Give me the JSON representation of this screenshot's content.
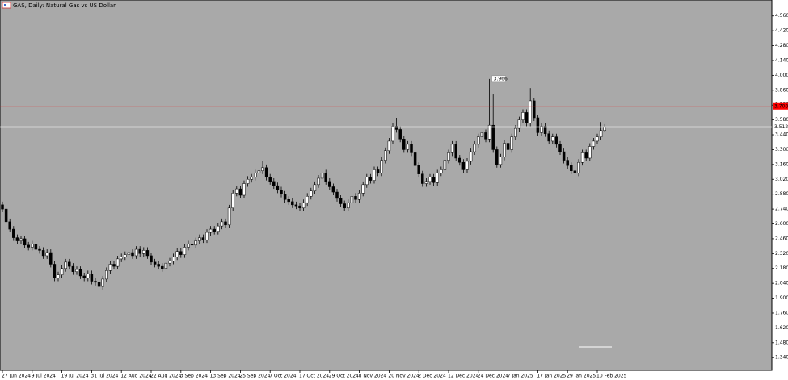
{
  "chart_data": {
    "type": "candlestick",
    "title": "GAS, Daily:  Natural Gas vs US Dollar",
    "background": "#a9a9a9",
    "up_color": "#ffffff",
    "down_color": "#000000",
    "ylim": [
      1.22,
      4.71
    ],
    "yticks": [
      {
        "value": 4.56,
        "label": "4.560"
      },
      {
        "value": 4.42,
        "label": "4.420"
      },
      {
        "value": 4.28,
        "label": "4.280"
      },
      {
        "value": 4.14,
        "label": "4.140"
      },
      {
        "value": 4.0,
        "label": "4.000"
      },
      {
        "value": 3.86,
        "label": "3.860"
      },
      {
        "value": 3.72,
        "label": "3.720"
      },
      {
        "value": 3.58,
        "label": "3.580"
      },
      {
        "value": 3.44,
        "label": "3.440"
      },
      {
        "value": 3.3,
        "label": "3.300"
      },
      {
        "value": 3.16,
        "label": "3.160"
      },
      {
        "value": 3.02,
        "label": "3.020"
      },
      {
        "value": 2.88,
        "label": "2.880"
      },
      {
        "value": 2.74,
        "label": "2.740"
      },
      {
        "value": 2.6,
        "label": "2.600"
      },
      {
        "value": 2.46,
        "label": "2.460"
      },
      {
        "value": 2.32,
        "label": "2.320"
      },
      {
        "value": 2.18,
        "label": "2.180"
      },
      {
        "value": 2.04,
        "label": "2.040"
      },
      {
        "value": 1.9,
        "label": "1.900"
      },
      {
        "value": 1.76,
        "label": "1.760"
      },
      {
        "value": 1.62,
        "label": "1.620"
      },
      {
        "value": 1.48,
        "label": "1.480"
      },
      {
        "value": 1.34,
        "label": "1.340"
      }
    ],
    "levels": [
      {
        "value": 3.708,
        "color": "#ff0000"
      },
      {
        "value": 3.512,
        "color": "#ffffff"
      }
    ],
    "annotation_candle": 131,
    "categories": [
      "27 Jun 2024",
      null,
      null,
      null,
      null,
      null,
      null,
      null,
      "9 Jul 2024",
      null,
      null,
      null,
      null,
      null,
      null,
      null,
      "19 Jul 2024",
      null,
      null,
      null,
      null,
      null,
      null,
      null,
      "31 Jul 2024",
      null,
      null,
      null,
      null,
      null,
      null,
      null,
      "12 Aug 2024",
      null,
      null,
      null,
      null,
      null,
      null,
      null,
      "22 Aug 2024",
      null,
      null,
      null,
      null,
      null,
      null,
      null,
      "3 Sep 2024",
      null,
      null,
      null,
      null,
      null,
      null,
      null,
      "13 Sep 2024",
      null,
      null,
      null,
      null,
      null,
      null,
      null,
      "25 Sep 2024",
      null,
      null,
      null,
      null,
      null,
      null,
      null,
      "7 Oct 2024",
      null,
      null,
      null,
      null,
      null,
      null,
      null,
      "17 Oct 2024",
      null,
      null,
      null,
      null,
      null,
      null,
      null,
      "29 Oct 2024",
      null,
      null,
      null,
      null,
      null,
      null,
      null,
      "8 Nov 2024",
      null,
      null,
      null,
      null,
      null,
      null,
      null,
      "20 Nov 2024",
      null,
      null,
      null,
      null,
      null,
      null,
      null,
      "2 Dec 2024",
      null,
      null,
      null,
      null,
      null,
      null,
      null,
      "12 Dec 2024",
      null,
      null,
      null,
      null,
      null,
      null,
      null,
      "24 Dec 2024",
      null,
      null,
      null,
      null,
      null,
      null,
      null,
      "7 Jan 2025",
      null,
      null,
      null,
      null,
      null,
      null,
      null,
      "17 Jan 2025",
      null,
      null,
      null,
      null,
      null,
      null,
      null,
      "29 Jan 2025",
      null,
      null,
      null,
      null,
      null,
      null,
      null,
      "10 Feb 2025",
      null,
      null
    ],
    "ohlc": [
      [
        2.78,
        2.81,
        2.71,
        2.74
      ],
      [
        2.74,
        2.77,
        2.59,
        2.62
      ],
      [
        2.62,
        2.65,
        2.52,
        2.55
      ],
      [
        2.55,
        2.58,
        2.44,
        2.47
      ],
      [
        2.47,
        2.5,
        2.41,
        2.44
      ],
      [
        2.44,
        2.49,
        2.41,
        2.46
      ],
      [
        2.46,
        2.49,
        2.37,
        2.4
      ],
      [
        2.4,
        2.43,
        2.35,
        2.38
      ],
      [
        2.38,
        2.44,
        2.35,
        2.41
      ],
      [
        2.41,
        2.44,
        2.33,
        2.36
      ],
      [
        2.36,
        2.39,
        2.32,
        2.35
      ],
      [
        2.35,
        2.38,
        2.27,
        2.3
      ],
      [
        2.3,
        2.36,
        2.27,
        2.33
      ],
      [
        2.33,
        2.36,
        2.19,
        2.22
      ],
      [
        2.22,
        2.25,
        2.06,
        2.09
      ],
      [
        2.09,
        2.15,
        2.06,
        2.12
      ],
      [
        2.12,
        2.21,
        2.09,
        2.18
      ],
      [
        2.18,
        2.27,
        2.15,
        2.24
      ],
      [
        2.24,
        2.27,
        2.17,
        2.2
      ],
      [
        2.2,
        2.23,
        2.12,
        2.15
      ],
      [
        2.15,
        2.2,
        2.12,
        2.17
      ],
      [
        2.17,
        2.2,
        2.08,
        2.11
      ],
      [
        2.11,
        2.14,
        2.06,
        2.09
      ],
      [
        2.09,
        2.16,
        2.06,
        2.13
      ],
      [
        2.13,
        2.16,
        2.03,
        2.06
      ],
      [
        2.06,
        2.09,
        2.02,
        2.05
      ],
      [
        2.05,
        2.08,
        1.97,
        2.01
      ],
      [
        2.01,
        2.11,
        1.98,
        2.08
      ],
      [
        2.08,
        2.19,
        2.05,
        2.16
      ],
      [
        2.16,
        2.25,
        2.13,
        2.22
      ],
      [
        2.22,
        2.25,
        2.17,
        2.2
      ],
      [
        2.2,
        2.3,
        2.17,
        2.27
      ],
      [
        2.27,
        2.32,
        2.24,
        2.29
      ],
      [
        2.29,
        2.34,
        2.26,
        2.31
      ],
      [
        2.31,
        2.36,
        2.28,
        2.33
      ],
      [
        2.33,
        2.36,
        2.27,
        2.3
      ],
      [
        2.3,
        2.39,
        2.27,
        2.36
      ],
      [
        2.36,
        2.39,
        2.29,
        2.32
      ],
      [
        2.32,
        2.38,
        2.29,
        2.35
      ],
      [
        2.35,
        2.38,
        2.27,
        2.3
      ],
      [
        2.3,
        2.33,
        2.21,
        2.24
      ],
      [
        2.24,
        2.27,
        2.19,
        2.22
      ],
      [
        2.22,
        2.25,
        2.17,
        2.2
      ],
      [
        2.2,
        2.23,
        2.15,
        2.18
      ],
      [
        2.18,
        2.26,
        2.15,
        2.23
      ],
      [
        2.23,
        2.28,
        2.2,
        2.25
      ],
      [
        2.25,
        2.32,
        2.22,
        2.29
      ],
      [
        2.29,
        2.37,
        2.26,
        2.34
      ],
      [
        2.34,
        2.37,
        2.28,
        2.31
      ],
      [
        2.31,
        2.41,
        2.28,
        2.38
      ],
      [
        2.38,
        2.44,
        2.35,
        2.41
      ],
      [
        2.41,
        2.44,
        2.37,
        2.4
      ],
      [
        2.4,
        2.47,
        2.37,
        2.44
      ],
      [
        2.44,
        2.5,
        2.41,
        2.47
      ],
      [
        2.47,
        2.5,
        2.42,
        2.45
      ],
      [
        2.45,
        2.55,
        2.42,
        2.52
      ],
      [
        2.52,
        2.58,
        2.49,
        2.55
      ],
      [
        2.55,
        2.58,
        2.5,
        2.53
      ],
      [
        2.53,
        2.61,
        2.5,
        2.58
      ],
      [
        2.58,
        2.65,
        2.55,
        2.62
      ],
      [
        2.62,
        2.65,
        2.56,
        2.59
      ],
      [
        2.59,
        2.78,
        2.56,
        2.75
      ],
      [
        2.75,
        2.92,
        2.72,
        2.89
      ],
      [
        2.89,
        2.96,
        2.86,
        2.93
      ],
      [
        2.93,
        2.96,
        2.84,
        2.87
      ],
      [
        2.87,
        3.01,
        2.84,
        2.98
      ],
      [
        2.98,
        3.05,
        2.95,
        3.02
      ],
      [
        3.02,
        3.07,
        2.99,
        3.04
      ],
      [
        3.04,
        3.11,
        3.01,
        3.08
      ],
      [
        3.08,
        3.13,
        3.05,
        3.1
      ],
      [
        3.1,
        3.19,
        3.07,
        3.13
      ],
      [
        3.13,
        3.16,
        3.01,
        3.04
      ],
      [
        3.04,
        3.07,
        2.97,
        3.0
      ],
      [
        3.0,
        3.03,
        2.93,
        2.96
      ],
      [
        2.96,
        2.99,
        2.89,
        2.92
      ],
      [
        2.92,
        2.95,
        2.85,
        2.88
      ],
      [
        2.88,
        2.91,
        2.8,
        2.83
      ],
      [
        2.83,
        2.86,
        2.78,
        2.81
      ],
      [
        2.81,
        2.84,
        2.75,
        2.78
      ],
      [
        2.78,
        2.81,
        2.74,
        2.77
      ],
      [
        2.77,
        2.8,
        2.72,
        2.75
      ],
      [
        2.75,
        2.83,
        2.72,
        2.8
      ],
      [
        2.8,
        2.89,
        2.77,
        2.86
      ],
      [
        2.86,
        2.94,
        2.83,
        2.91
      ],
      [
        2.91,
        3.0,
        2.88,
        2.97
      ],
      [
        2.97,
        3.06,
        2.94,
        3.03
      ],
      [
        3.03,
        3.11,
        3.0,
        3.08
      ],
      [
        3.08,
        3.11,
        2.97,
        3.0
      ],
      [
        3.0,
        3.03,
        2.92,
        2.95
      ],
      [
        2.95,
        2.98,
        2.87,
        2.9
      ],
      [
        2.9,
        2.93,
        2.81,
        2.84
      ],
      [
        2.84,
        2.87,
        2.76,
        2.79
      ],
      [
        2.79,
        2.82,
        2.72,
        2.75
      ],
      [
        2.75,
        2.83,
        2.72,
        2.8
      ],
      [
        2.8,
        2.89,
        2.77,
        2.86
      ],
      [
        2.86,
        2.89,
        2.8,
        2.83
      ],
      [
        2.83,
        2.92,
        2.8,
        2.89
      ],
      [
        2.89,
        3.0,
        2.86,
        2.97
      ],
      [
        2.97,
        3.07,
        2.94,
        3.04
      ],
      [
        3.04,
        3.07,
        2.98,
        3.01
      ],
      [
        3.01,
        3.14,
        2.98,
        3.11
      ],
      [
        3.11,
        3.14,
        3.05,
        3.08
      ],
      [
        3.08,
        3.23,
        3.05,
        3.2
      ],
      [
        3.2,
        3.32,
        3.17,
        3.29
      ],
      [
        3.29,
        3.41,
        3.26,
        3.38
      ],
      [
        3.38,
        3.55,
        3.35,
        3.52
      ],
      [
        3.52,
        3.6,
        3.46,
        3.49
      ],
      [
        3.49,
        3.52,
        3.37,
        3.4
      ],
      [
        3.4,
        3.43,
        3.27,
        3.3
      ],
      [
        3.3,
        3.38,
        3.27,
        3.35
      ],
      [
        3.35,
        3.38,
        3.24,
        3.27
      ],
      [
        3.27,
        3.3,
        3.12,
        3.15
      ],
      [
        3.15,
        3.18,
        3.04,
        3.07
      ],
      [
        3.07,
        3.1,
        2.95,
        2.98
      ],
      [
        2.98,
        3.03,
        2.95,
        3.0
      ],
      [
        3.0,
        3.07,
        2.97,
        3.04
      ],
      [
        3.04,
        3.07,
        2.96,
        2.99
      ],
      [
        2.99,
        3.11,
        2.96,
        3.08
      ],
      [
        3.08,
        3.14,
        3.05,
        3.11
      ],
      [
        3.11,
        3.23,
        3.08,
        3.2
      ],
      [
        3.2,
        3.3,
        3.17,
        3.27
      ],
      [
        3.27,
        3.38,
        3.24,
        3.35
      ],
      [
        3.35,
        3.38,
        3.19,
        3.22
      ],
      [
        3.22,
        3.25,
        3.15,
        3.18
      ],
      [
        3.18,
        3.21,
        3.08,
        3.11
      ],
      [
        3.11,
        3.22,
        3.08,
        3.19
      ],
      [
        3.19,
        3.31,
        3.16,
        3.28
      ],
      [
        3.28,
        3.38,
        3.25,
        3.35
      ],
      [
        3.35,
        3.45,
        3.32,
        3.42
      ],
      [
        3.42,
        3.49,
        3.39,
        3.46
      ],
      [
        3.46,
        3.49,
        3.37,
        3.4
      ],
      [
        3.4,
        3.966,
        3.37,
        3.53
      ],
      [
        3.53,
        3.82,
        3.27,
        3.3
      ],
      [
        3.3,
        3.33,
        3.13,
        3.16
      ],
      [
        3.16,
        3.26,
        3.13,
        3.23
      ],
      [
        3.23,
        3.39,
        3.2,
        3.36
      ],
      [
        3.36,
        3.39,
        3.27,
        3.3
      ],
      [
        3.3,
        3.45,
        3.27,
        3.42
      ],
      [
        3.42,
        3.53,
        3.39,
        3.5
      ],
      [
        3.5,
        3.61,
        3.47,
        3.58
      ],
      [
        3.58,
        3.68,
        3.55,
        3.65
      ],
      [
        3.65,
        3.68,
        3.52,
        3.55
      ],
      [
        3.55,
        3.88,
        3.52,
        3.76
      ],
      [
        3.76,
        3.79,
        3.57,
        3.6
      ],
      [
        3.6,
        3.63,
        3.43,
        3.46
      ],
      [
        3.46,
        3.55,
        3.43,
        3.52
      ],
      [
        3.52,
        3.55,
        3.42,
        3.45
      ],
      [
        3.45,
        3.48,
        3.35,
        3.38
      ],
      [
        3.38,
        3.45,
        3.35,
        3.42
      ],
      [
        3.42,
        3.45,
        3.32,
        3.35
      ],
      [
        3.35,
        3.38,
        3.25,
        3.28
      ],
      [
        3.28,
        3.31,
        3.17,
        3.2
      ],
      [
        3.2,
        3.23,
        3.12,
        3.15
      ],
      [
        3.15,
        3.18,
        3.07,
        3.1
      ],
      [
        3.1,
        3.13,
        3.02,
        3.08
      ],
      [
        3.08,
        3.21,
        3.05,
        3.18
      ],
      [
        3.18,
        3.3,
        3.15,
        3.27
      ],
      [
        3.27,
        3.3,
        3.19,
        3.22
      ],
      [
        3.22,
        3.36,
        3.19,
        3.33
      ],
      [
        3.33,
        3.41,
        3.3,
        3.38
      ],
      [
        3.38,
        3.45,
        3.35,
        3.42
      ],
      [
        3.42,
        3.56,
        3.39,
        3.48
      ],
      [
        3.48,
        3.54,
        3.47,
        3.51
      ]
    ]
  }
}
